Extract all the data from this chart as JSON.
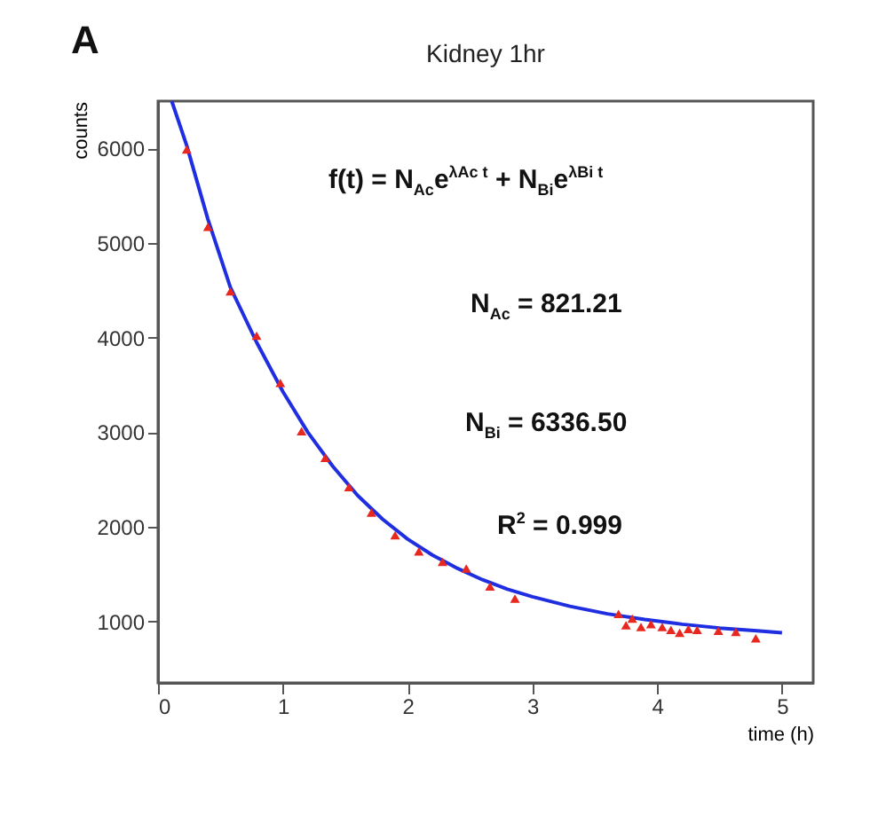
{
  "chart_data": {
    "type": "scatter",
    "title": "Kidney 1hr",
    "xlabel": "time (h)",
    "ylabel": "counts",
    "annotations": [
      "A",
      "f(t) = N$_{Ac}$e$^{λAc t}$ + N$_{Bi}$e$^{λBi t}$",
      "N$_{Ac}$ = 821.21",
      "N$_{Bi}$ = 6336.50",
      "R$^{2}$ = 0.999"
    ],
    "xlim": [
      0,
      5.25
    ],
    "xticks": [
      0,
      1,
      2,
      3,
      4,
      5
    ],
    "ylim": [
      350,
      6500
    ],
    "yticks": [
      1000,
      2000,
      3000,
      4000,
      5000,
      6000
    ],
    "grid": false,
    "series": [
      {
        "marker": "triangle",
        "color": "#e8271f",
        "x": [
          0.23,
          0.4,
          0.58,
          0.79,
          0.98,
          1.15,
          1.34,
          1.53,
          1.71,
          1.9,
          2.09,
          2.28,
          2.47,
          2.66,
          2.86,
          3.69,
          3.75,
          3.8,
          3.87,
          3.95,
          4.04,
          4.11,
          4.18,
          4.25,
          4.32,
          4.49,
          4.63,
          4.79
        ],
        "values": [
          5990,
          5170,
          4490,
          4020,
          3520,
          3010,
          2730,
          2420,
          2150,
          1910,
          1740,
          1630,
          1560,
          1370,
          1240,
          1080,
          960,
          1030,
          940,
          970,
          940,
          910,
          880,
          920,
          910,
          900,
          890,
          820
        ]
      },
      {
        "type": "line",
        "marker": "none",
        "line_style": "solid",
        "color": "#1f2ee0",
        "x": [
          0.11,
          0.23,
          0.4,
          0.58,
          0.79,
          1.0,
          1.2,
          1.4,
          1.6,
          1.8,
          2.0,
          2.2,
          2.4,
          2.6,
          2.8,
          3.0,
          3.3,
          3.6,
          3.9,
          4.2,
          4.5,
          4.8,
          5.0
        ],
        "values": [
          6500,
          6030,
          5250,
          4530,
          3950,
          3430,
          3000,
          2640,
          2330,
          2080,
          1870,
          1700,
          1560,
          1440,
          1340,
          1260,
          1160,
          1080,
          1020,
          970,
          930,
          900,
          880
        ]
      }
    ]
  }
}
